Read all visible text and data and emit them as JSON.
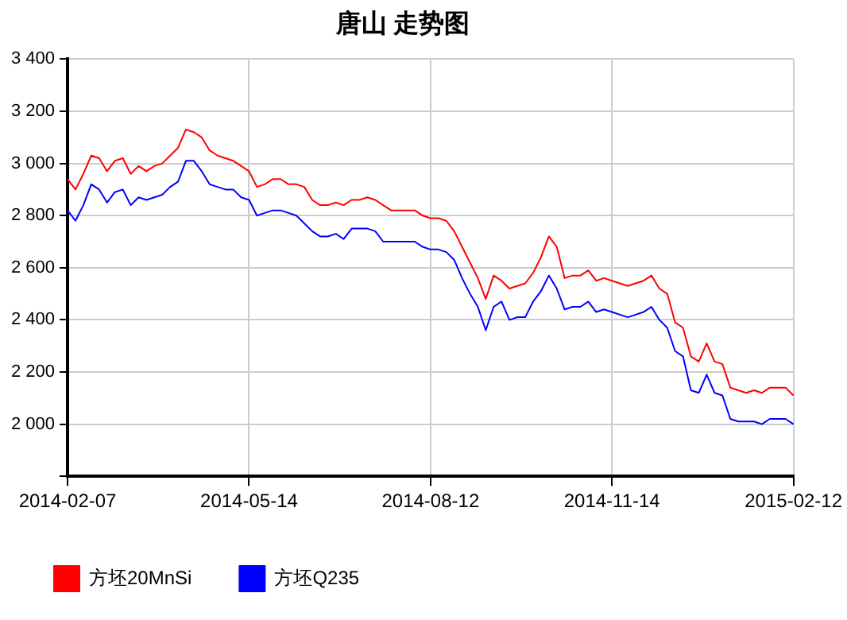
{
  "chart_data": {
    "type": "line",
    "title": "唐山 走势图",
    "categories": [
      "2014-02-07",
      null,
      null,
      null,
      null,
      null,
      null,
      null,
      null,
      null,
      null,
      null,
      null,
      null,
      null,
      null,
      null,
      null,
      null,
      null,
      null,
      null,
      null,
      "2014-05-14",
      null,
      null,
      null,
      null,
      null,
      null,
      null,
      null,
      null,
      null,
      null,
      null,
      null,
      null,
      null,
      null,
      null,
      null,
      null,
      null,
      null,
      null,
      "2014-08-12",
      null,
      null,
      null,
      null,
      null,
      null,
      null,
      null,
      null,
      null,
      null,
      null,
      null,
      null,
      null,
      null,
      null,
      null,
      null,
      null,
      null,
      null,
      "2014-11-14",
      null,
      null,
      null,
      null,
      null,
      null,
      null,
      null,
      null,
      null,
      null,
      null,
      null,
      null,
      null,
      null,
      null,
      null,
      null,
      null,
      null,
      null,
      "2015-02-12"
    ],
    "series": [
      {
        "name": "方坯20MnSi",
        "color": "#ff0000",
        "values": [
          2940,
          2900,
          2960,
          3030,
          3020,
          2970,
          3010,
          3020,
          2960,
          2990,
          2970,
          2990,
          3000,
          3030,
          3060,
          3130,
          3120,
          3100,
          3050,
          3030,
          3020,
          3010,
          2990,
          2970,
          2910,
          2920,
          2940,
          2940,
          2920,
          2920,
          2910,
          2860,
          2840,
          2840,
          2850,
          2840,
          2860,
          2860,
          2870,
          2860,
          2840,
          2820,
          2820,
          2820,
          2820,
          2800,
          2790,
          2790,
          2780,
          2740,
          2680,
          2620,
          2560,
          2480,
          2570,
          2550,
          2520,
          2530,
          2540,
          2580,
          2640,
          2720,
          2680,
          2560,
          2570,
          2570,
          2590,
          2550,
          2560,
          2550,
          2540,
          2530,
          2540,
          2550,
          2570,
          2520,
          2500,
          2390,
          2370,
          2260,
          2240,
          2310,
          2240,
          2230,
          2140,
          2130,
          2120,
          2130,
          2120,
          2140,
          2140,
          2140,
          2110
        ]
      },
      {
        "name": "方坯Q235",
        "color": "#0000ff",
        "values": [
          2820,
          2780,
          2840,
          2920,
          2900,
          2850,
          2890,
          2900,
          2840,
          2870,
          2860,
          2870,
          2880,
          2910,
          2930,
          3010,
          3010,
          2970,
          2920,
          2910,
          2900,
          2900,
          2870,
          2860,
          2800,
          2810,
          2820,
          2820,
          2810,
          2800,
          2770,
          2740,
          2720,
          2720,
          2730,
          2710,
          2750,
          2750,
          2750,
          2740,
          2700,
          2700,
          2700,
          2700,
          2700,
          2680,
          2670,
          2670,
          2660,
          2630,
          2560,
          2500,
          2450,
          2360,
          2450,
          2470,
          2400,
          2410,
          2410,
          2470,
          2510,
          2570,
          2520,
          2440,
          2450,
          2450,
          2470,
          2430,
          2440,
          2430,
          2420,
          2410,
          2420,
          2430,
          2450,
          2400,
          2370,
          2280,
          2260,
          2130,
          2120,
          2190,
          2120,
          2110,
          2020,
          2010,
          2010,
          2010,
          2000,
          2020,
          2020,
          2020,
          2000
        ]
      }
    ],
    "ylim": [
      1800,
      3400
    ],
    "yticks": [
      {
        "value": 1800,
        "label": null
      },
      {
        "value": 2000,
        "label": "2 000"
      },
      {
        "value": 2200,
        "label": "2 200"
      },
      {
        "value": 2400,
        "label": "2 400"
      },
      {
        "value": 2600,
        "label": "2 600"
      },
      {
        "value": 2800,
        "label": "2 800"
      },
      {
        "value": 3000,
        "label": "3 000"
      },
      {
        "value": 3200,
        "label": "3 200"
      },
      {
        "value": 3400,
        "label": "3 400"
      }
    ],
    "grid": true,
    "legend": "bottom",
    "marker": "none",
    "line_style": "solid"
  }
}
